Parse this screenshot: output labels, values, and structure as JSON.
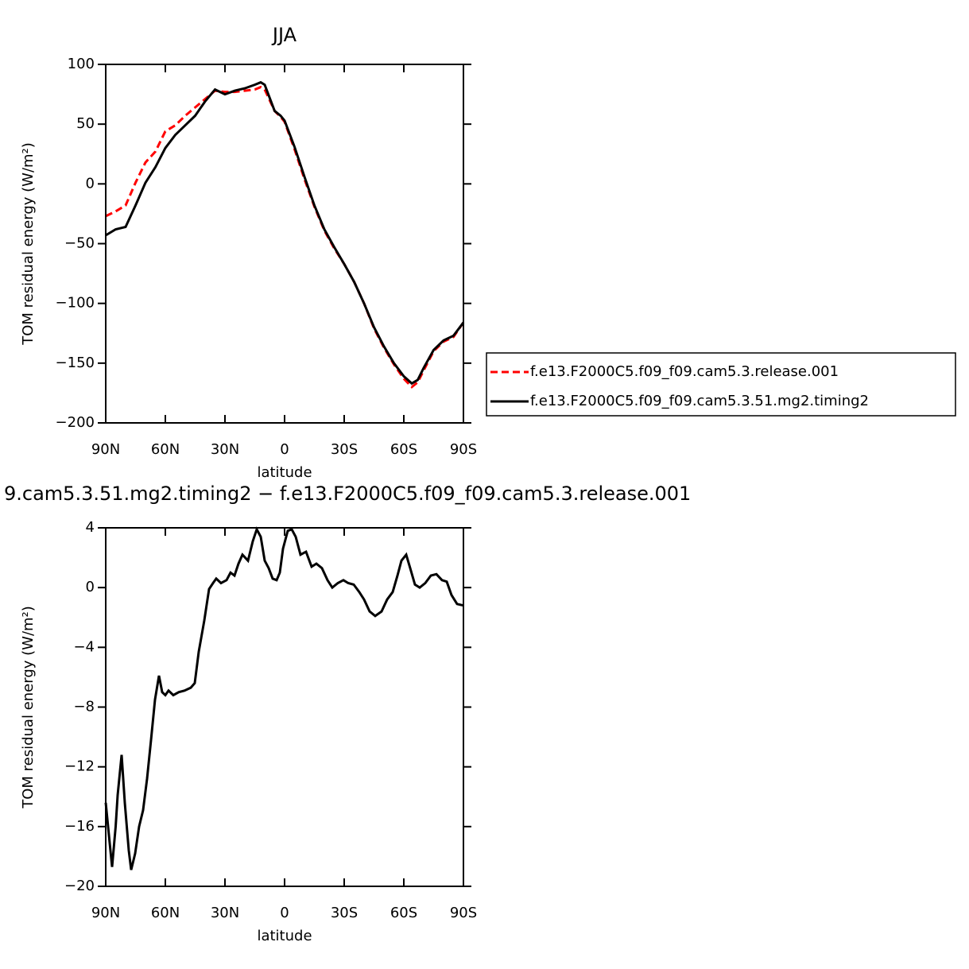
{
  "chart_data": [
    {
      "type": "line",
      "title": "JJA",
      "xlabel": "latitude",
      "ylabel": "TOM residual energy (W/m²)",
      "x": [
        90,
        85,
        80,
        75,
        70,
        65,
        60,
        55,
        50,
        45,
        40,
        35,
        30,
        25,
        20,
        15,
        12,
        10,
        5,
        2,
        0,
        -5,
        -10,
        -15,
        -20,
        -25,
        -30,
        -35,
        -40,
        -45,
        -50,
        -55,
        -60,
        -64,
        -67,
        -70,
        -75,
        -80,
        -85,
        -90
      ],
      "series": [
        {
          "name": "f.e13.F2000C5.f09_f09.cam5.3.release.001",
          "color": "#ff0000",
          "dash": true,
          "values": [
            -27,
            -23,
            -18,
            1,
            18,
            27,
            44,
            49,
            57,
            64,
            71,
            78,
            77,
            77,
            78,
            79,
            81,
            79,
            61,
            56,
            52,
            29,
            4,
            -19,
            -39,
            -54,
            -67,
            -82,
            -100,
            -121,
            -137,
            -151,
            -163,
            -170,
            -166,
            -156,
            -140,
            -132,
            -128,
            -116
          ]
        },
        {
          "name": "f.e13.F2000C5.f09_f09.cam5.3.51.mg2.timing2",
          "color": "#000000",
          "dash": false,
          "values": [
            -43,
            -38,
            -36,
            -18,
            1,
            14,
            30,
            41,
            49,
            57,
            69,
            79,
            75,
            78,
            80,
            83,
            85,
            83,
            61,
            57,
            53,
            31,
            6,
            -18,
            -38,
            -53,
            -67,
            -82,
            -100,
            -120,
            -136,
            -150,
            -161,
            -167,
            -164,
            -154,
            -139,
            -131,
            -127,
            -116
          ]
        }
      ],
      "xlim": [
        90,
        -90
      ],
      "xticks": [
        {
          "value": 90,
          "label": "90N"
        },
        {
          "value": 60,
          "label": "60N"
        },
        {
          "value": 30,
          "label": "30N"
        },
        0,
        {
          "value": -30,
          "label": "30S"
        },
        {
          "value": -60,
          "label": "60S"
        },
        {
          "value": -90,
          "label": "90S"
        }
      ],
      "ylim": [
        -200,
        100
      ],
      "yticks": [
        {
          "value": -200,
          "label": "−200"
        },
        {
          "value": -150,
          "label": "−150"
        },
        {
          "value": -100,
          "label": "−100"
        },
        {
          "value": -50,
          "label": "−50"
        },
        0,
        50,
        100
      ],
      "legend": "outside-right",
      "grid": false
    },
    {
      "type": "line",
      "title": "9.cam5.3.51.mg2.timing2 − f.e13.F2000C5.f09_f09.cam5.3.release.001",
      "xlabel": "latitude",
      "ylabel": "TOM residual energy (W/m²)",
      "x": [
        90,
        88,
        86.8,
        85,
        84,
        82,
        80.4,
        78.4,
        77.2,
        75.2,
        73.2,
        71.2,
        69.2,
        67.2,
        65.2,
        63.2,
        61.6,
        60,
        58.4,
        56,
        53.2,
        50.4,
        47.2,
        45.2,
        43.2,
        40.4,
        38,
        36,
        34.4,
        32,
        29.2,
        27.2,
        25.2,
        23.2,
        21.2,
        18.4,
        16,
        14,
        12,
        10,
        8,
        6,
        4,
        2.4,
        0.8,
        -1.6,
        -3.6,
        -5.6,
        -8,
        -10.8,
        -13.6,
        -16,
        -18.8,
        -21.6,
        -24,
        -26.8,
        -29.6,
        -32,
        -34.8,
        -37.6,
        -40,
        -42.8,
        -45.6,
        -48.8,
        -51.6,
        -54.4,
        -56.8,
        -58.8,
        -61.2,
        -63.2,
        -65.6,
        -68,
        -70.8,
        -73.6,
        -76.4,
        -79.2,
        -81.6,
        -84,
        -86.8,
        -90
      ],
      "values": [
        -14.4,
        -17.1,
        -18.7,
        -16,
        -13.9,
        -11.2,
        -14.4,
        -17.6,
        -18.9,
        -17.8,
        -16,
        -14.9,
        -12.8,
        -10.2,
        -7.5,
        -5.9,
        -7,
        -7.2,
        -6.9,
        -7.2,
        -7,
        -6.9,
        -6.7,
        -6.4,
        -4.3,
        -2.2,
        -0.1,
        0.3,
        0.6,
        0.3,
        0.5,
        1,
        0.8,
        1.6,
        2.2,
        1.8,
        3.1,
        3.9,
        3.4,
        1.8,
        1.3,
        0.6,
        0.5,
        1,
        2.6,
        3.8,
        3.9,
        3.4,
        2.2,
        2.4,
        1.4,
        1.6,
        1.3,
        0.5,
        0,
        0.3,
        0.5,
        0.3,
        0.2,
        -0.3,
        -0.8,
        -1.6,
        -1.9,
        -1.6,
        -0.8,
        -0.3,
        0.8,
        1.8,
        2.2,
        1.3,
        0.2,
        0,
        0.3,
        0.8,
        0.9,
        0.5,
        0.4,
        -0.5,
        -1.1,
        -1.2
      ],
      "color": "#000000",
      "xlim": [
        90,
        -90
      ],
      "xticks": [
        {
          "value": 90,
          "label": "90N"
        },
        {
          "value": 60,
          "label": "60N"
        },
        {
          "value": 30,
          "label": "30N"
        },
        0,
        {
          "value": -30,
          "label": "30S"
        },
        {
          "value": -60,
          "label": "60S"
        },
        {
          "value": -90,
          "label": "90S"
        }
      ],
      "ylim": [
        -20,
        4
      ],
      "yticks": [
        {
          "value": -20,
          "label": "−20"
        },
        {
          "value": -16,
          "label": "−16"
        },
        {
          "value": -12,
          "label": "−12"
        },
        {
          "value": -8,
          "label": "−8"
        },
        {
          "value": -4,
          "label": "−4"
        },
        0,
        4
      ],
      "grid": false
    }
  ]
}
